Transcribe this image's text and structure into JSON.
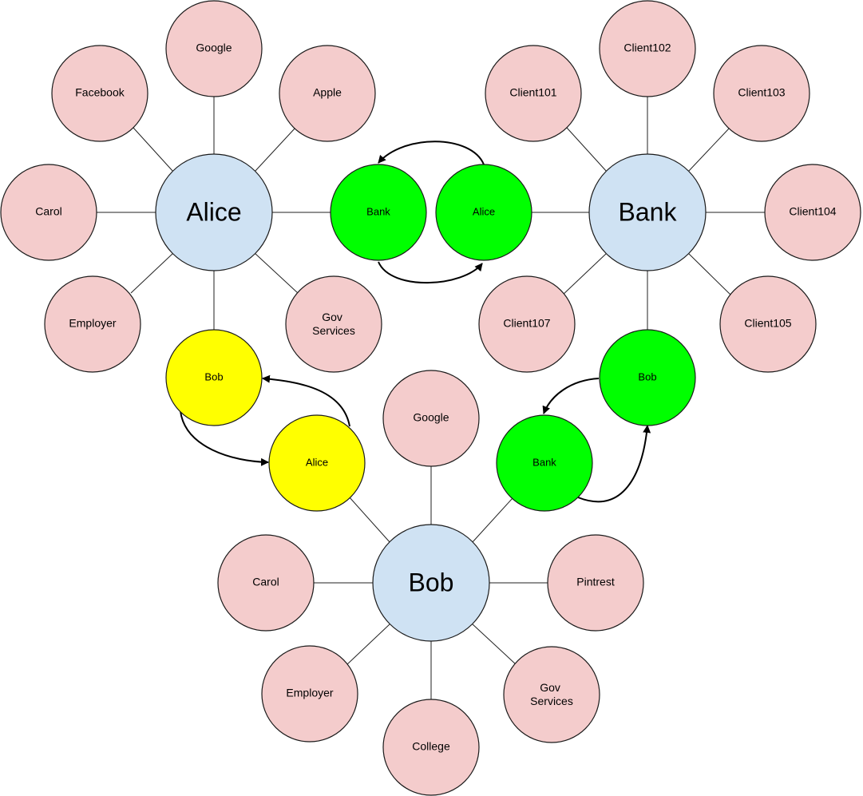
{
  "colors": {
    "hub": "#cfe2f3",
    "leaf": "#f4cccc",
    "green": "#00ff00",
    "yellow": "#ffff00"
  },
  "hubs": {
    "alice": "Alice",
    "bank": "Bank",
    "bob": "Bob"
  },
  "alice_leaves": {
    "google": "Google",
    "facebook": "Facebook",
    "apple": "Apple",
    "carol": "Carol",
    "employer": "Employer",
    "gov": [
      "Gov",
      "Services"
    ]
  },
  "bank_leaves": {
    "client101": "Client101",
    "client102": "Client102",
    "client103": "Client103",
    "client104": "Client104",
    "client105": "Client105",
    "client107": "Client107"
  },
  "bob_leaves": {
    "google": "Google",
    "carol": "Carol",
    "pintrest": "Pintrest",
    "employer": "Employer",
    "college": "College",
    "gov": [
      "Gov",
      "Services"
    ]
  },
  "alice_bank_pair": {
    "left": "Bank",
    "right": "Alice"
  },
  "alice_bob_pair": {
    "top": "Bob",
    "bottom": "Alice"
  },
  "bank_bob_pair": {
    "top": "Bob",
    "bottom": "Bank"
  }
}
